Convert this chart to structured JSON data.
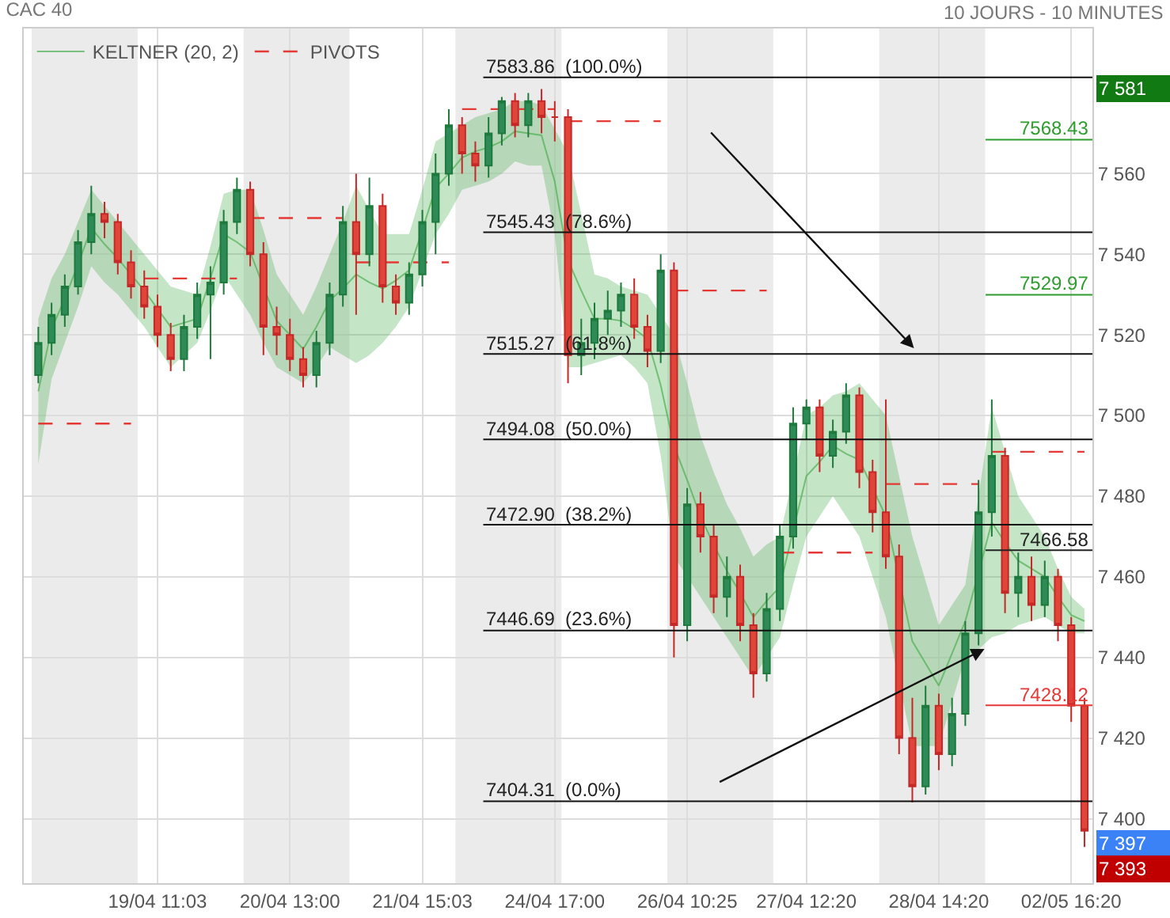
{
  "chart_data": {
    "type": "candlestick",
    "title": "CAC 40",
    "subtitle": "10 JOURS - 10 MINUTES",
    "categories": [
      null,
      null,
      null,
      null,
      null,
      null,
      null,
      null,
      null,
      "19/04 11:03",
      null,
      null,
      null,
      null,
      null,
      null,
      null,
      null,
      null,
      "20/04 13:00",
      null,
      null,
      null,
      null,
      null,
      null,
      null,
      null,
      null,
      "21/04 15:03",
      null,
      null,
      null,
      null,
      null,
      null,
      null,
      null,
      null,
      "24/04 17:00",
      null,
      null,
      null,
      null,
      null,
      null,
      null,
      null,
      null,
      "26/04 10:25",
      null,
      null,
      null,
      null,
      null,
      null,
      null,
      null,
      "27/04 12:20",
      null,
      null,
      null,
      null,
      null,
      null,
      null,
      null,
      null,
      "28/04 14:20",
      null,
      null,
      null,
      null,
      null,
      null,
      null,
      null,
      null,
      "02/05 16:20",
      null
    ],
    "ohlc": [
      [
        7510,
        7522,
        7508,
        7518
      ],
      [
        7518,
        7528,
        7515,
        7525
      ],
      [
        7525,
        7535,
        7522,
        7532
      ],
      [
        7532,
        7546,
        7530,
        7543
      ],
      [
        7543,
        7557,
        7540,
        7550
      ],
      [
        7550,
        7553,
        7544,
        7548
      ],
      [
        7548,
        7550,
        7535,
        7538
      ],
      [
        7538,
        7541,
        7529,
        7532
      ],
      [
        7532,
        7536,
        7524,
        7527
      ],
      [
        7527,
        7530,
        7517,
        7520
      ],
      [
        7520,
        7523,
        7511,
        7514
      ],
      [
        7514,
        7525,
        7511,
        7522
      ],
      [
        7522,
        7533,
        7519,
        7530
      ],
      [
        7530,
        7537,
        7514,
        7533
      ],
      [
        7533,
        7551,
        7530,
        7548
      ],
      [
        7548,
        7559,
        7545,
        7556
      ],
      [
        7556,
        7558,
        7537,
        7540
      ],
      [
        7540,
        7543,
        7515,
        7522
      ],
      [
        7522,
        7527,
        7515,
        7520
      ],
      [
        7520,
        7524,
        7511,
        7514
      ],
      [
        7514,
        7517,
        7507,
        7510
      ],
      [
        7510,
        7521,
        7507,
        7518
      ],
      [
        7518,
        7533,
        7515,
        7530
      ],
      [
        7530,
        7552,
        7527,
        7548
      ],
      [
        7548,
        7560,
        7525,
        7540
      ],
      [
        7540,
        7559,
        7537,
        7552
      ],
      [
        7552,
        7555,
        7528,
        7532
      ],
      [
        7532,
        7535,
        7525,
        7528
      ],
      [
        7528,
        7538,
        7525,
        7535
      ],
      [
        7535,
        7551,
        7532,
        7548
      ],
      [
        7548,
        7565,
        7540,
        7560
      ],
      [
        7560,
        7576,
        7557,
        7572
      ],
      [
        7572,
        7574,
        7560,
        7565
      ],
      [
        7565,
        7568,
        7558,
        7562
      ],
      [
        7562,
        7574,
        7559,
        7570
      ],
      [
        7570,
        7579,
        7567,
        7578
      ],
      [
        7578,
        7580,
        7569,
        7572
      ],
      [
        7572,
        7580,
        7569,
        7578
      ],
      [
        7578,
        7581,
        7570,
        7574
      ],
      [
        7574,
        7578,
        7568,
        7574
      ],
      [
        7574,
        7576,
        7508,
        7515
      ],
      [
        7515,
        7524,
        7510,
        7518
      ],
      [
        7518,
        7528,
        7514,
        7524
      ],
      [
        7524,
        7531,
        7520,
        7526
      ],
      [
        7526,
        7533,
        7522,
        7530
      ],
      [
        7530,
        7534,
        7519,
        7522
      ],
      [
        7522,
        7525,
        7512,
        7516
      ],
      [
        7516,
        7540,
        7513,
        7536
      ],
      [
        7536,
        7538,
        7440,
        7448
      ],
      [
        7448,
        7482,
        7444,
        7478
      ],
      [
        7478,
        7481,
        7466,
        7470
      ],
      [
        7470,
        7473,
        7451,
        7455
      ],
      [
        7455,
        7465,
        7450,
        7460
      ],
      [
        7460,
        7463,
        7444,
        7448
      ],
      [
        7448,
        7451,
        7430,
        7436
      ],
      [
        7436,
        7456,
        7434,
        7452
      ],
      [
        7452,
        7473,
        7449,
        7470
      ],
      [
        7470,
        7502,
        7467,
        7498
      ],
      [
        7498,
        7504,
        7494,
        7502
      ],
      [
        7502,
        7504,
        7486,
        7490
      ],
      [
        7490,
        7499,
        7487,
        7496
      ],
      [
        7496,
        7508,
        7493,
        7505
      ],
      [
        7505,
        7507,
        7482,
        7486
      ],
      [
        7486,
        7489,
        7471,
        7476
      ],
      [
        7476,
        7504,
        7462,
        7465
      ],
      [
        7465,
        7468,
        7416,
        7420
      ],
      [
        7420,
        7430,
        7404,
        7408
      ],
      [
        7408,
        7433,
        7406,
        7428
      ],
      [
        7428,
        7431,
        7412,
        7416
      ],
      [
        7416,
        7430,
        7413,
        7426
      ],
      [
        7426,
        7449,
        7423,
        7446
      ],
      [
        7446,
        7484,
        7443,
        7476
      ],
      [
        7476,
        7504,
        7470,
        7490
      ],
      [
        7490,
        7492,
        7451,
        7456
      ],
      [
        7456,
        7466,
        7450,
        7460
      ],
      [
        7460,
        7465,
        7449,
        7453
      ],
      [
        7453,
        7464,
        7450,
        7460
      ],
      [
        7460,
        7462,
        7444,
        7448
      ],
      [
        7448,
        7450,
        7424,
        7428
      ],
      [
        7428,
        7430,
        7393,
        7397
      ]
    ],
    "series": [
      {
        "name": "KELTNER (20, 2)",
        "type": "line",
        "color": "#4caf50",
        "values": [
          7506,
          7521.5,
          7529,
          7537.5,
          7546.5,
          7542.5,
          7539,
          7535,
          7531,
          7526.5,
          7522,
          7523,
          7524,
          7534,
          7545,
          7543,
          7540.5,
          7532,
          7523.5,
          7520,
          7516.5,
          7522,
          7528.5,
          7531.5,
          7535,
          7533,
          7531.5,
          7533.5,
          7536,
          7546,
          7556.5,
          7560,
          7564,
          7565.5,
          7566.5,
          7568,
          7570.5,
          7570,
          7569.5,
          7558,
          7538.5,
          7531,
          7524,
          7524,
          7523.5,
          7521.5,
          7519,
          7507.5,
          7492.5,
          7484,
          7475,
          7468,
          7461.5,
          7456,
          7450,
          7454,
          7457.5,
          7471.5,
          7485,
          7488.5,
          7492.5,
          7490.5,
          7489,
          7482,
          7475,
          7459.5,
          7444,
          7438.5,
          7433,
          7441,
          7449,
          7461,
          7473.5,
          7468.5,
          7464,
          7462,
          7460,
          7455,
          7450.5,
          7449
        ],
        "lower": [
          7488,
          7509,
          7518,
          7527,
          7537,
          7533,
          7530,
          7526,
          7522,
          7517,
          7512,
          7515,
          7518,
          7526,
          7535,
          7530,
          7525,
          7518,
          7512,
          7510,
          7508,
          7512,
          7517,
          7515,
          7513,
          7515,
          7518,
          7522,
          7527,
          7536,
          7545,
          7550,
          7556,
          7557,
          7558,
          7560,
          7563,
          7562,
          7562,
          7545,
          7512,
          7512,
          7513,
          7514,
          7515,
          7512,
          7508,
          7490,
          7465,
          7460,
          7455,
          7450,
          7445,
          7440,
          7435,
          7440,
          7445,
          7458,
          7470,
          7475,
          7480,
          7475,
          7470,
          7460,
          7450,
          7434,
          7418,
          7418,
          7418,
          7429,
          7440,
          7442,
          7445,
          7446,
          7448,
          7449,
          7450,
          7448,
          7446,
          7446
        ],
        "upper": [
          7524,
          7534,
          7540,
          7548,
          7556,
          7552,
          7548,
          7544,
          7540,
          7536,
          7532,
          7531,
          7530,
          7542,
          7555,
          7556,
          7556,
          7546,
          7535,
          7530,
          7525,
          7532,
          7540,
          7548,
          7557,
          7551,
          7545,
          7545,
          7545,
          7556,
          7568,
          7570,
          7572,
          7574,
          7575,
          7576,
          7578,
          7578,
          7577,
          7571,
          7565,
          7550,
          7535,
          7534,
          7532,
          7531,
          7530,
          7525,
          7520,
          7508,
          7495,
          7486,
          7478,
          7472,
          7465,
          7468,
          7470,
          7485,
          7500,
          7502,
          7505,
          7506,
          7508,
          7504,
          7500,
          7485,
          7470,
          7459,
          7448,
          7453,
          7458,
          7480,
          7502,
          7491,
          7480,
          7475,
          7470,
          7462,
          7455,
          7452
        ]
      },
      {
        "name": "PIVOTS",
        "type": "line",
        "color": "#e53935",
        "line_style": "dashed",
        "values": [
          7498,
          7498,
          7498,
          7498,
          7498,
          7498,
          7498,
          7498,
          7534,
          7534,
          7534,
          7534,
          7534,
          7534,
          7534,
          7534,
          7549,
          7549,
          7549,
          7549,
          7549,
          7549,
          7549,
          7549,
          7538,
          7538,
          7538,
          7538,
          7538,
          7538,
          7538,
          7538,
          7576,
          7576,
          7576,
          7576,
          7576,
          7576,
          7576,
          7576,
          7573,
          7573,
          7573,
          7573,
          7573,
          7573,
          7573,
          7573,
          7531,
          7531,
          7531,
          7531,
          7531,
          7531,
          7531,
          7531,
          7466,
          7466,
          7466,
          7466,
          7466,
          7466,
          7466,
          7466,
          7483,
          7483,
          7483,
          7483,
          7483,
          7483,
          7483,
          7483,
          7491,
          7491,
          7491,
          7491,
          7491,
          7491,
          7491,
          7491
        ]
      }
    ],
    "ref_lines": [
      {
        "axis": "y",
        "value": 7583.86,
        "label": "7583.86  (100.0%)"
      },
      {
        "axis": "y",
        "value": 7545.43,
        "label": "7545.43  (78.6%)"
      },
      {
        "axis": "y",
        "value": 7515.27,
        "label": "7515.27  (61.8%)"
      },
      {
        "axis": "y",
        "value": 7494.08,
        "label": "7494.08  (50.0%)"
      },
      {
        "axis": "y",
        "value": 7472.9,
        "label": "7472.90  (38.2%)"
      },
      {
        "axis": "y",
        "value": 7446.69,
        "label": "7446.69  (23.6%)"
      },
      {
        "axis": "y",
        "value": 7404.31,
        "label": "7404.31  (0.0%)"
      },
      {
        "axis": "y",
        "value": 7568.43,
        "label": "7568.43",
        "color": "#2e9c2e"
      },
      {
        "axis": "y",
        "value": 7529.97,
        "label": "7529.97",
        "color": "#2e9c2e"
      },
      {
        "axis": "y",
        "value": 7466.58,
        "label": "7466.58",
        "color": "#222222"
      },
      {
        "axis": "y",
        "value": 7428.12,
        "label": "7428.12",
        "color": "#e53935"
      }
    ],
    "annotations": [
      "7 581",
      "7 397",
      "7 393"
    ],
    "ylim": [
      7384,
      7596
    ],
    "yticks": [
      {
        "value": 7400,
        "label": "7 400"
      },
      {
        "value": 7420,
        "label": "7 420"
      },
      {
        "value": 7440,
        "label": "7 440"
      },
      {
        "value": 7460,
        "label": "7 460"
      },
      {
        "value": 7480,
        "label": "7 480"
      },
      {
        "value": 7500,
        "label": "7 500"
      },
      {
        "value": 7520,
        "label": "7 520"
      },
      {
        "value": 7540,
        "label": "7 540"
      },
      {
        "value": 7560,
        "label": "7 560"
      }
    ],
    "grid": true,
    "legend": "top left",
    "marker": "none"
  }
}
